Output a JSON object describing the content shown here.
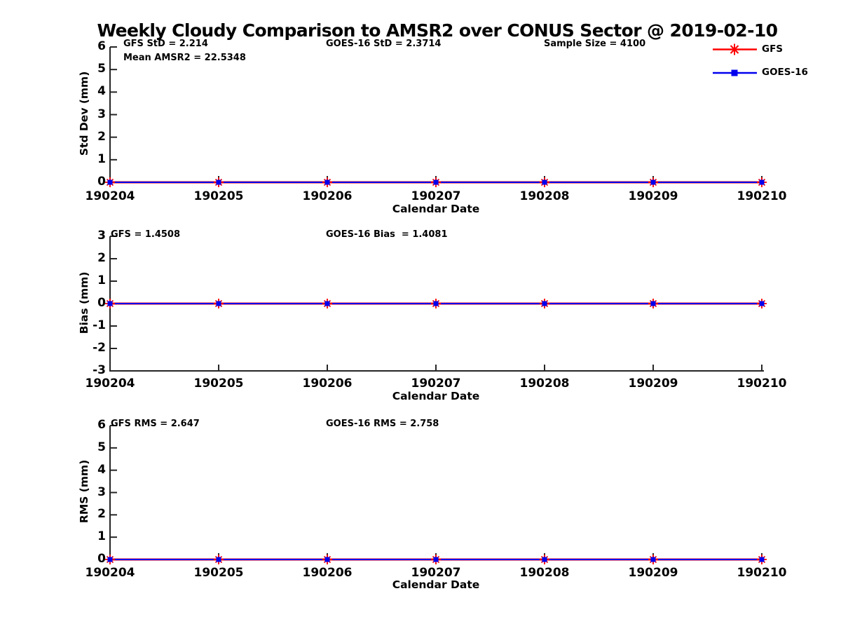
{
  "title": "Weekly Cloudy Comparison to AMSR2 over CONUS Sector @ 2019-02-10",
  "colors": {
    "gfs": "#ff0000",
    "goes16": "#0000ee",
    "axis": "#262626",
    "zero_line": "#000000",
    "text": "#000000"
  },
  "legend": {
    "position": "top-right",
    "items": [
      {
        "label": "GFS",
        "color": "#ff0000",
        "marker": "asterisk"
      },
      {
        "label": "GOES-16",
        "color": "#0000ee",
        "marker": "square"
      }
    ]
  },
  "chart_data": [
    {
      "type": "line",
      "name": "std-dev-panel",
      "ylabel": "Std Dev (mm)",
      "xlabel": "Calendar Date",
      "categories": [
        "190204",
        "190205",
        "190206",
        "190207",
        "190208",
        "190209",
        "190210"
      ],
      "ylim": [
        0,
        6
      ],
      "yticks": [
        6,
        5,
        4,
        3,
        2,
        1,
        0
      ],
      "grid": false,
      "zero_line": false,
      "series": [
        {
          "name": "GFS",
          "color": "#ff0000",
          "marker": "asterisk",
          "values": [
            0,
            0,
            0,
            0,
            0,
            0,
            0
          ]
        },
        {
          "name": "GOES-16",
          "color": "#0000ee",
          "marker": "square",
          "values": [
            0,
            0,
            0,
            0,
            0,
            0,
            0
          ]
        }
      ],
      "annotations": [
        "GFS StD = 2.214",
        "Mean AMSR2 = 22.5348",
        "GOES-16 StD = 2.3714",
        "Sample Size = 4100"
      ]
    },
    {
      "type": "line",
      "name": "bias-panel",
      "ylabel": "Bias (mm)",
      "xlabel": "Calendar Date",
      "categories": [
        "190204",
        "190205",
        "190206",
        "190207",
        "190208",
        "190209",
        "190210"
      ],
      "ylim": [
        -3,
        3
      ],
      "yticks": [
        3,
        2,
        1,
        0,
        -1,
        -2,
        -3
      ],
      "grid": false,
      "zero_line": true,
      "series": [
        {
          "name": "GFS",
          "color": "#ff0000",
          "marker": "asterisk",
          "values": [
            0,
            0,
            0,
            0,
            0,
            0,
            0
          ]
        },
        {
          "name": "GOES-16",
          "color": "#0000ee",
          "marker": "square",
          "values": [
            0,
            0,
            0,
            0,
            0,
            0,
            0
          ]
        }
      ],
      "annotations": [
        "GFS = 1.4508",
        "GOES-16 Bias  = 1.4081"
      ]
    },
    {
      "type": "line",
      "name": "rms-panel",
      "ylabel": "RMS (mm)",
      "xlabel": "Calendar Date",
      "categories": [
        "190204",
        "190205",
        "190206",
        "190207",
        "190208",
        "190209",
        "190210"
      ],
      "ylim": [
        0,
        6
      ],
      "yticks": [
        6,
        5,
        4,
        3,
        2,
        1,
        0
      ],
      "grid": false,
      "zero_line": false,
      "series": [
        {
          "name": "GFS",
          "color": "#ff0000",
          "marker": "asterisk",
          "values": [
            0,
            0,
            0,
            0,
            0,
            0,
            0
          ]
        },
        {
          "name": "GOES-16",
          "color": "#0000ee",
          "marker": "square",
          "values": [
            0,
            0,
            0,
            0,
            0,
            0,
            0
          ]
        }
      ],
      "annotations": [
        "GFS RMS = 2.647",
        "GOES-16 RMS = 2.758"
      ]
    }
  ]
}
